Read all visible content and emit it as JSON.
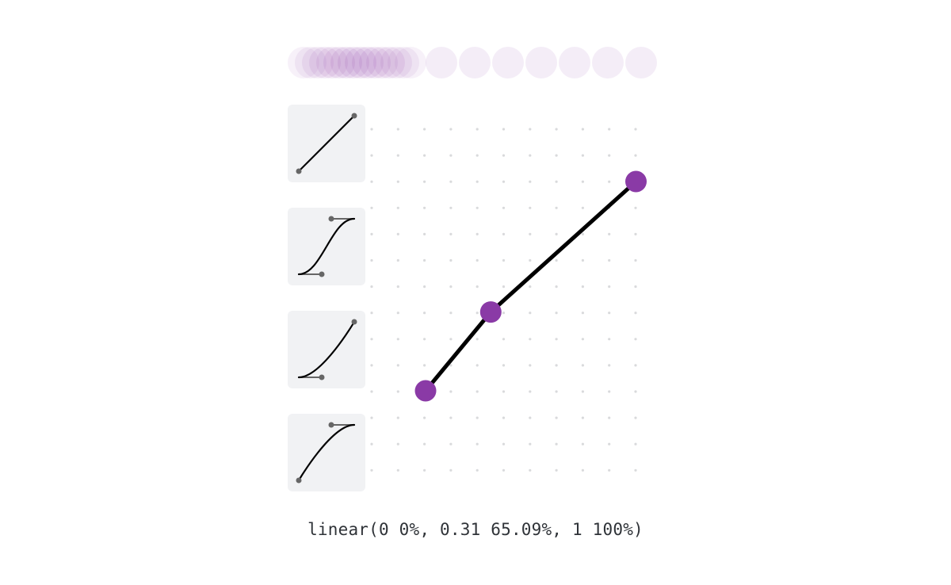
{
  "theme": {
    "accent": "#8a3aa6",
    "ball_color": "#8a3aa6",
    "curve_color": "#000000",
    "grid_dot_color": "#d9dadc",
    "preset_bg": "#f1f2f4",
    "text_color": "#2f3338"
  },
  "presets": [
    {
      "name": "linear",
      "icon": "linear-curve-icon"
    },
    {
      "name": "ease-in-out",
      "icon": "ease-in-out-curve-icon"
    },
    {
      "name": "ease-in",
      "icon": "ease-in-curve-icon"
    },
    {
      "name": "ease-out",
      "icon": "ease-out-curve-icon"
    }
  ],
  "easing": {
    "points": [
      {
        "t": 0,
        "p": 0
      },
      {
        "t": 0.31,
        "p": 65.09
      },
      {
        "t": 1,
        "p": 100
      }
    ],
    "output": "linear(0 0%, 0.31 65.09%, 1 100%)"
  }
}
